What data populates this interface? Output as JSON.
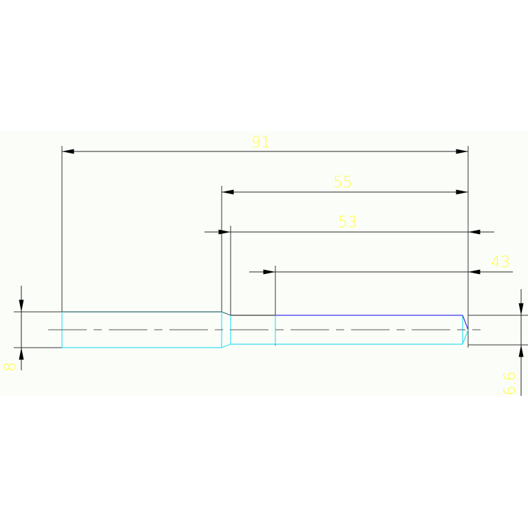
{
  "drawing": {
    "dimensions": {
      "overall_length": "91",
      "length_55": "55",
      "length_53": "53",
      "length_43": "43",
      "diameter_large": "8",
      "diameter_small": "6.6"
    },
    "colors": {
      "background": "#fbfdf9",
      "dimension_lines": "#222222",
      "dimension_text": "#ffff33",
      "part_outline": "#33e0f0",
      "part_outline_blue": "#3333ee",
      "centerline": "#555555"
    }
  }
}
